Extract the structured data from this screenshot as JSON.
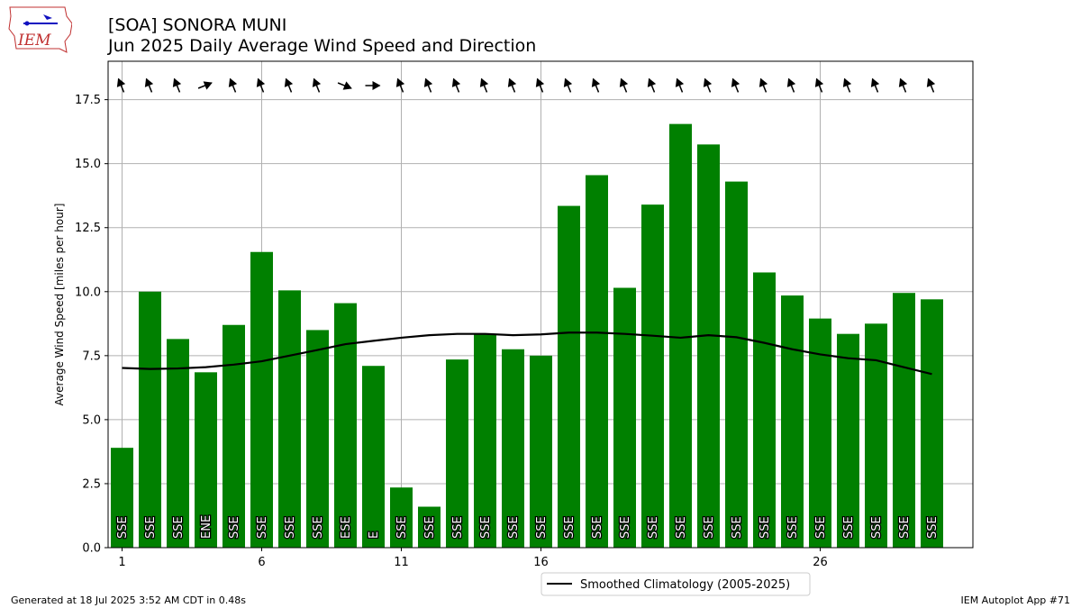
{
  "header": {
    "title": "[SOA] SONORA MUNI",
    "subtitle": "Jun 2025 Daily Average Wind Speed and Direction",
    "logo_text": "IEM"
  },
  "footer": {
    "generated": "Generated at 18 Jul 2025 3:52 AM CDT in 0.48s",
    "app": "IEM Autoplot App #71"
  },
  "chart_data": {
    "type": "bar",
    "title": "Jun 2025 Daily Average Wind Speed and Direction",
    "ylabel": "Average Wind Speed [miles per hour]",
    "xlabel": "",
    "ylim": [
      0,
      19
    ],
    "xticks": [
      1,
      6,
      11,
      16,
      26
    ],
    "yticks": [
      "0.0",
      "2.5",
      "5.0",
      "7.5",
      "10.0",
      "12.5",
      "15.0",
      "17.5"
    ],
    "grid": true,
    "bar_color": "#008000",
    "days": [
      1,
      2,
      3,
      4,
      5,
      6,
      7,
      8,
      9,
      10,
      11,
      12,
      13,
      14,
      15,
      16,
      17,
      18,
      19,
      20,
      21,
      22,
      23,
      24,
      25,
      26,
      27,
      28,
      29,
      30
    ],
    "values": [
      3.9,
      10.0,
      8.15,
      6.85,
      8.7,
      11.55,
      10.05,
      8.5,
      9.55,
      7.1,
      2.35,
      1.6,
      7.35,
      8.35,
      7.75,
      7.5,
      13.35,
      14.55,
      10.15,
      13.4,
      16.55,
      15.75,
      14.3,
      10.75,
      9.85,
      8.95,
      8.35,
      8.75,
      9.95,
      9.7
    ],
    "directions": [
      "SSE",
      "SSE",
      "SSE",
      "ENE",
      "SSE",
      "SSE",
      "SSE",
      "SSE",
      "ESE",
      "E",
      "SSE",
      "SSE",
      "SSE",
      "SSE",
      "SSE",
      "SSE",
      "SSE",
      "SSE",
      "SSE",
      "SSE",
      "SSE",
      "SSE",
      "SSE",
      "SSE",
      "SSE",
      "SSE",
      "SSE",
      "SSE",
      "SSE",
      "SSE"
    ],
    "arrow_angles_deg": [
      338,
      338,
      338,
      68,
      338,
      338,
      338,
      338,
      112,
      90,
      338,
      338,
      338,
      338,
      338,
      338,
      338,
      338,
      338,
      338,
      338,
      338,
      338,
      338,
      338,
      338,
      338,
      338,
      338,
      338
    ],
    "climatology": {
      "name": "Smoothed Climatology (2005-2025)",
      "values": [
        7.02,
        6.98,
        7.0,
        7.05,
        7.15,
        7.28,
        7.5,
        7.72,
        7.95,
        8.08,
        8.2,
        8.3,
        8.35,
        8.35,
        8.3,
        8.33,
        8.4,
        8.4,
        8.35,
        8.28,
        8.2,
        8.3,
        8.22,
        8.0,
        7.75,
        7.55,
        7.4,
        7.32,
        7.05,
        6.78
      ]
    },
    "legend": "bottom-center"
  }
}
